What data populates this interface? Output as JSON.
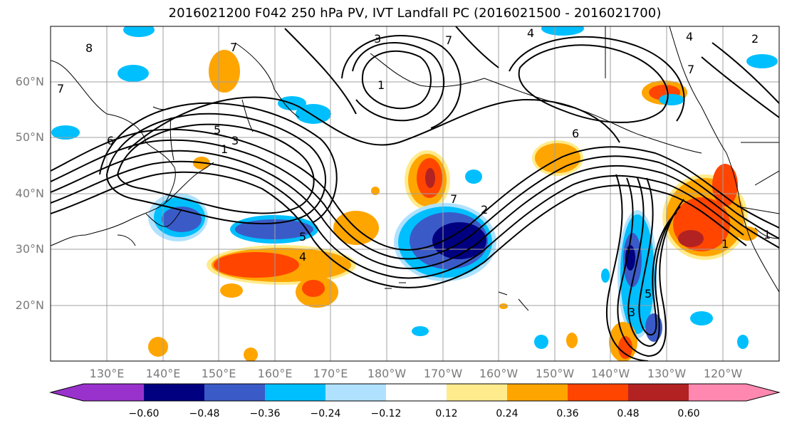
{
  "title": "2016021200 F042 250 hPa PV, IVT Landfall PC (2016021500 - 2016021700)",
  "lat_labels": [
    "60°N",
    "50°N",
    "40°N",
    "30°N",
    "20°N"
  ],
  "lon_labels": [
    "130°E",
    "140°E",
    "150°E",
    "160°E",
    "170°E",
    "180°W",
    "170°W",
    "160°W",
    "150°W",
    "140°W",
    "130°W",
    "120°W"
  ],
  "contour_labels": [
    "8",
    "7",
    "6",
    "5",
    "3",
    "1",
    "7",
    "4",
    "7",
    "3",
    "1",
    "6",
    "7",
    "2",
    "5",
    "4",
    "7",
    "4",
    "2",
    "1",
    "1",
    "5",
    "3"
  ],
  "colorbar": {
    "ticks": [
      "−0.60",
      "−0.48",
      "−0.36",
      "−0.24",
      "−0.12",
      "0.12",
      "0.24",
      "0.36",
      "0.48",
      "0.60"
    ],
    "colors": [
      "#9932CC",
      "#000080",
      "#3A5BC7",
      "#00BFFF",
      "#B0E2FF",
      "#FFFFFF",
      "#FFEB8C",
      "#FFA500",
      "#FF4500",
      "#B22222",
      "#FF88B0"
    ]
  },
  "fill_colors": {
    "navy": "#000080",
    "blue": "#3A5BC7",
    "sky": "#00BFFF",
    "light": "#B0E2FF",
    "pale_yellow": "#FFEB8C",
    "orange": "#FFA500",
    "red_orange": "#FF4500",
    "dark_red": "#B22222"
  }
}
